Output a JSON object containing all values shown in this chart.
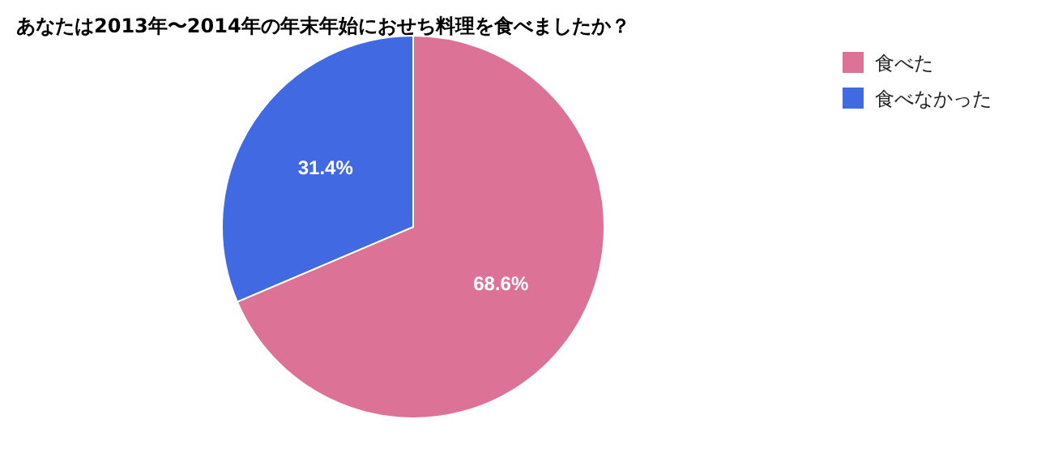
{
  "chart_data": {
    "type": "pie",
    "title": "あなたは2013年〜2014年の年末年始におせち料理を食べましたか？",
    "categories": [
      "食べた",
      "食べなかった"
    ],
    "values": [
      68.6,
      31.4
    ],
    "colors": [
      "#dc7295",
      "#4169e1"
    ],
    "value_labels": [
      "68.6%",
      "31.4%"
    ],
    "legend": "top right"
  }
}
